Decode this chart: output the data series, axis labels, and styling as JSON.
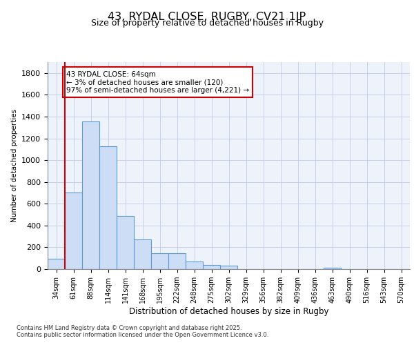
{
  "title_line1": "43, RYDAL CLOSE, RUGBY, CV21 1JP",
  "title_line2": "Size of property relative to detached houses in Rugby",
  "xlabel": "Distribution of detached houses by size in Rugby",
  "ylabel": "Number of detached properties",
  "bar_labels": [
    "34sqm",
    "61sqm",
    "88sqm",
    "114sqm",
    "141sqm",
    "168sqm",
    "195sqm",
    "222sqm",
    "248sqm",
    "275sqm",
    "302sqm",
    "329sqm",
    "356sqm",
    "382sqm",
    "409sqm",
    "436sqm",
    "463sqm",
    "490sqm",
    "516sqm",
    "543sqm",
    "570sqm"
  ],
  "bar_values": [
    95,
    700,
    1355,
    1130,
    490,
    275,
    145,
    145,
    68,
    35,
    30,
    0,
    0,
    0,
    0,
    0,
    15,
    0,
    0,
    0,
    0
  ],
  "bar_color": "#ccddf5",
  "bar_edge_color": "#5b9bd5",
  "background_color": "#eef2fb",
  "grid_color": "#c8d0e8",
  "vline_x_idx": 1,
  "vline_color": "#cc0000",
  "annotation_text": "43 RYDAL CLOSE: 64sqm\n← 3% of detached houses are smaller (120)\n97% of semi-detached houses are larger (4,221) →",
  "annotation_box_color": "#cc0000",
  "ylim": [
    0,
    1900
  ],
  "yticks": [
    0,
    200,
    400,
    600,
    800,
    1000,
    1200,
    1400,
    1600,
    1800
  ],
  "footer_line1": "Contains HM Land Registry data © Crown copyright and database right 2025.",
  "footer_line2": "Contains public sector information licensed under the Open Government Licence v3.0."
}
